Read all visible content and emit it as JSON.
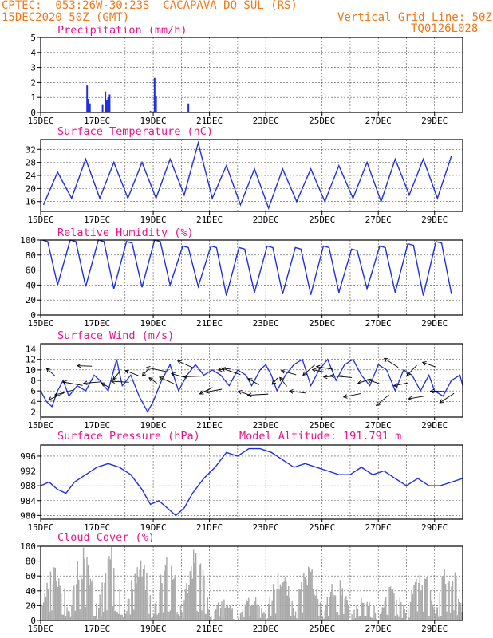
{
  "header": {
    "line1": "CPTEC:  053:26W-30:23S  CACAPAVA DO SUL (RS)",
    "line2_left": "15DEC2020 50Z (GMT)",
    "line2_right": "Vertical Grid Line: 50Z",
    "line3_right": "TQ0126L028"
  },
  "colors": {
    "header": "#f07818",
    "title": "#e8148c",
    "series": "#1f2fe0",
    "cloud": "#a8a8a8",
    "grid": "#555555"
  },
  "chart_data": [
    {
      "type": "bar",
      "title": "Precipitation (mm/h)",
      "x_tick_labels": [
        "15DEC",
        "17DEC",
        "19DEC",
        "21DEC",
        "23DEC",
        "25DEC",
        "27DEC",
        "29DEC"
      ],
      "x_range_days": [
        15,
        30
      ],
      "ylim": [
        0,
        5
      ],
      "y_ticks": [
        0,
        1,
        2,
        3,
        4,
        5
      ],
      "events": [
        {
          "day": 16.65,
          "value": 1.8
        },
        {
          "day": 16.7,
          "value": 0.9
        },
        {
          "day": 16.75,
          "value": 0.6
        },
        {
          "day": 17.2,
          "value": 0.5
        },
        {
          "day": 17.3,
          "value": 1.4
        },
        {
          "day": 17.35,
          "value": 0.8
        },
        {
          "day": 17.4,
          "value": 1.0
        },
        {
          "day": 17.45,
          "value": 1.2
        },
        {
          "day": 18.9,
          "value": 0.1
        },
        {
          "day": 19.05,
          "value": 2.3
        },
        {
          "day": 19.1,
          "value": 1.1
        },
        {
          "day": 20.25,
          "value": 0.6
        }
      ]
    },
    {
      "type": "line",
      "title": "Surface Temperature (nC)",
      "x_tick_labels": [
        "15DEC",
        "17DEC",
        "19DEC",
        "21DEC",
        "23DEC",
        "25DEC",
        "27DEC",
        "29DEC"
      ],
      "x_range_days": [
        15,
        30
      ],
      "ylim": [
        13,
        35
      ],
      "y_ticks": [
        16,
        20,
        24,
        28,
        32
      ],
      "daily_min": [
        15,
        17,
        17,
        17,
        17,
        18,
        17,
        15,
        14,
        16,
        16,
        17,
        16,
        18,
        17,
        17
      ],
      "daily_max": [
        25,
        29,
        28,
        28,
        29,
        34,
        27,
        26,
        26,
        26,
        27,
        28,
        29,
        29,
        30,
        30
      ]
    },
    {
      "type": "line",
      "title": "Relative Humidity (%)",
      "x_tick_labels": [
        "15DEC",
        "17DEC",
        "19DEC",
        "21DEC",
        "23DEC",
        "25DEC",
        "27DEC",
        "29DEC"
      ],
      "x_range_days": [
        15,
        30
      ],
      "ylim": [
        0,
        100
      ],
      "y_ticks": [
        0,
        20,
        40,
        60,
        80,
        100
      ],
      "daily_max": [
        100,
        100,
        100,
        98,
        100,
        92,
        92,
        90,
        92,
        90,
        92,
        88,
        92,
        95,
        98,
        90
      ],
      "daily_min": [
        40,
        38,
        35,
        37,
        40,
        38,
        26,
        30,
        28,
        27,
        30,
        35,
        30,
        26,
        28,
        28
      ]
    },
    {
      "type": "line",
      "title": "Surface Wind (m/s)",
      "x_tick_labels": [
        "15DEC",
        "17DEC",
        "19DEC",
        "21DEC",
        "23DEC",
        "25DEC",
        "27DEC",
        "29DEC"
      ],
      "x_range_days": [
        15,
        30
      ],
      "ylim": [
        1,
        15
      ],
      "y_ticks": [
        2,
        4,
        6,
        8,
        10,
        12,
        14
      ],
      "speed_nodes": [
        [
          15.0,
          6
        ],
        [
          15.2,
          4
        ],
        [
          15.4,
          3
        ],
        [
          15.6,
          6
        ],
        [
          15.8,
          8
        ],
        [
          16.0,
          5
        ],
        [
          16.3,
          7
        ],
        [
          16.6,
          6
        ],
        [
          16.9,
          9
        ],
        [
          17.1,
          8
        ],
        [
          17.4,
          6
        ],
        [
          17.7,
          12
        ],
        [
          17.9,
          7
        ],
        [
          18.2,
          9
        ],
        [
          18.5,
          5
        ],
        [
          18.8,
          2
        ],
        [
          19.0,
          4
        ],
        [
          19.3,
          8
        ],
        [
          19.6,
          11
        ],
        [
          19.9,
          6
        ],
        [
          20.2,
          9
        ],
        [
          20.5,
          11
        ],
        [
          20.8,
          9
        ],
        [
          21.1,
          10
        ],
        [
          21.4,
          9
        ],
        [
          21.7,
          7
        ],
        [
          22.0,
          10
        ],
        [
          22.3,
          9
        ],
        [
          22.5,
          7
        ],
        [
          22.8,
          10
        ],
        [
          23.0,
          11
        ],
        [
          23.2,
          9
        ],
        [
          23.4,
          6
        ],
        [
          23.7,
          9
        ],
        [
          24.0,
          11
        ],
        [
          24.3,
          12
        ],
        [
          24.6,
          7
        ],
        [
          24.9,
          10
        ],
        [
          25.2,
          12
        ],
        [
          25.5,
          8
        ],
        [
          25.8,
          11
        ],
        [
          26.1,
          12
        ],
        [
          26.4,
          9
        ],
        [
          26.7,
          7
        ],
        [
          27.0,
          11
        ],
        [
          27.3,
          10
        ],
        [
          27.6,
          6
        ],
        [
          27.9,
          10
        ],
        [
          28.2,
          9
        ],
        [
          28.5,
          6
        ],
        [
          28.8,
          9
        ],
        [
          29.0,
          6
        ],
        [
          29.3,
          5
        ],
        [
          29.6,
          8
        ],
        [
          29.9,
          9
        ],
        [
          30.0,
          7
        ]
      ]
    },
    {
      "type": "line",
      "title": "Surface Pressure (hPa)",
      "annotation": "Model Altitude: 191.791 m",
      "x_tick_labels": [
        "15DEC",
        "17DEC",
        "19DEC",
        "21DEC",
        "23DEC",
        "25DEC",
        "27DEC",
        "29DEC"
      ],
      "x_range_days": [
        15,
        30
      ],
      "ylim": [
        979,
        999
      ],
      "y_ticks": [
        980,
        984,
        988,
        992,
        996
      ],
      "nodes": [
        [
          15.0,
          988
        ],
        [
          15.3,
          989
        ],
        [
          15.6,
          987
        ],
        [
          15.9,
          986
        ],
        [
          16.2,
          989
        ],
        [
          16.6,
          991
        ],
        [
          17.0,
          993
        ],
        [
          17.4,
          994
        ],
        [
          17.8,
          993
        ],
        [
          18.2,
          991
        ],
        [
          18.6,
          987
        ],
        [
          18.9,
          983
        ],
        [
          19.2,
          984
        ],
        [
          19.5,
          982
        ],
        [
          19.8,
          980
        ],
        [
          20.1,
          982
        ],
        [
          20.4,
          986
        ],
        [
          20.8,
          990
        ],
        [
          21.2,
          993
        ],
        [
          21.6,
          997
        ],
        [
          22.0,
          996
        ],
        [
          22.4,
          998
        ],
        [
          22.8,
          998
        ],
        [
          23.2,
          997
        ],
        [
          23.6,
          995
        ],
        [
          24.0,
          993
        ],
        [
          24.4,
          994
        ],
        [
          24.8,
          993
        ],
        [
          25.2,
          992
        ],
        [
          25.6,
          991
        ],
        [
          26.0,
          991
        ],
        [
          26.4,
          993
        ],
        [
          26.8,
          991
        ],
        [
          27.2,
          992
        ],
        [
          27.6,
          990
        ],
        [
          28.0,
          988
        ],
        [
          28.4,
          990
        ],
        [
          28.8,
          988
        ],
        [
          29.2,
          988
        ],
        [
          29.6,
          989
        ],
        [
          30.0,
          990
        ]
      ]
    },
    {
      "type": "bar",
      "title": "Cloud Cover (%)",
      "x_tick_labels": [
        "15DEC",
        "17DEC",
        "19DEC",
        "21DEC",
        "23DEC",
        "25DEC",
        "27DEC",
        "29DEC"
      ],
      "x_range_days": [
        15,
        30
      ],
      "ylim": [
        0,
        100
      ],
      "y_ticks": [
        0,
        20,
        40,
        60,
        80,
        100
      ],
      "daily_peak": [
        78,
        100,
        100,
        88,
        100,
        100,
        30,
        35,
        72,
        75,
        60,
        35,
        50,
        72,
        80,
        50
      ]
    }
  ]
}
